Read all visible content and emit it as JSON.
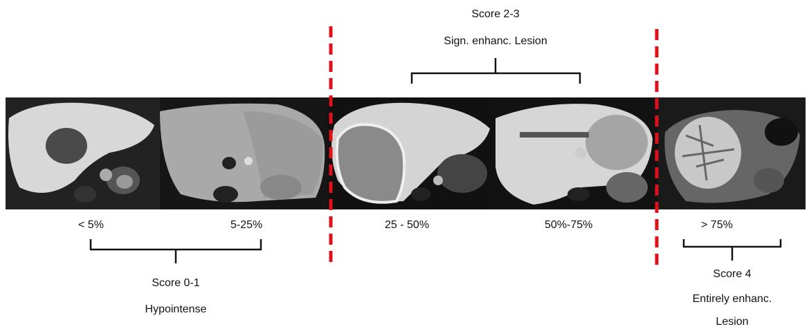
{
  "top_group": {
    "score": "Score 2-3",
    "description": "Sign. enhanc. Lesion"
  },
  "left_group": {
    "score": "Score 0-1",
    "description": "Hypointense"
  },
  "right_group": {
    "score": "Score 4",
    "description_line1": "Entirely enhanc.",
    "description_line2": "Lesion"
  },
  "images": [
    {
      "label": "< 5%"
    },
    {
      "label": "5-25%"
    },
    {
      "label": "25 - 50%"
    },
    {
      "label": "50%-75%"
    },
    {
      "label": "> 75%"
    }
  ],
  "colors": {
    "divider": "#e0101a",
    "bracket": "#111111",
    "scan_background": "#141414"
  }
}
